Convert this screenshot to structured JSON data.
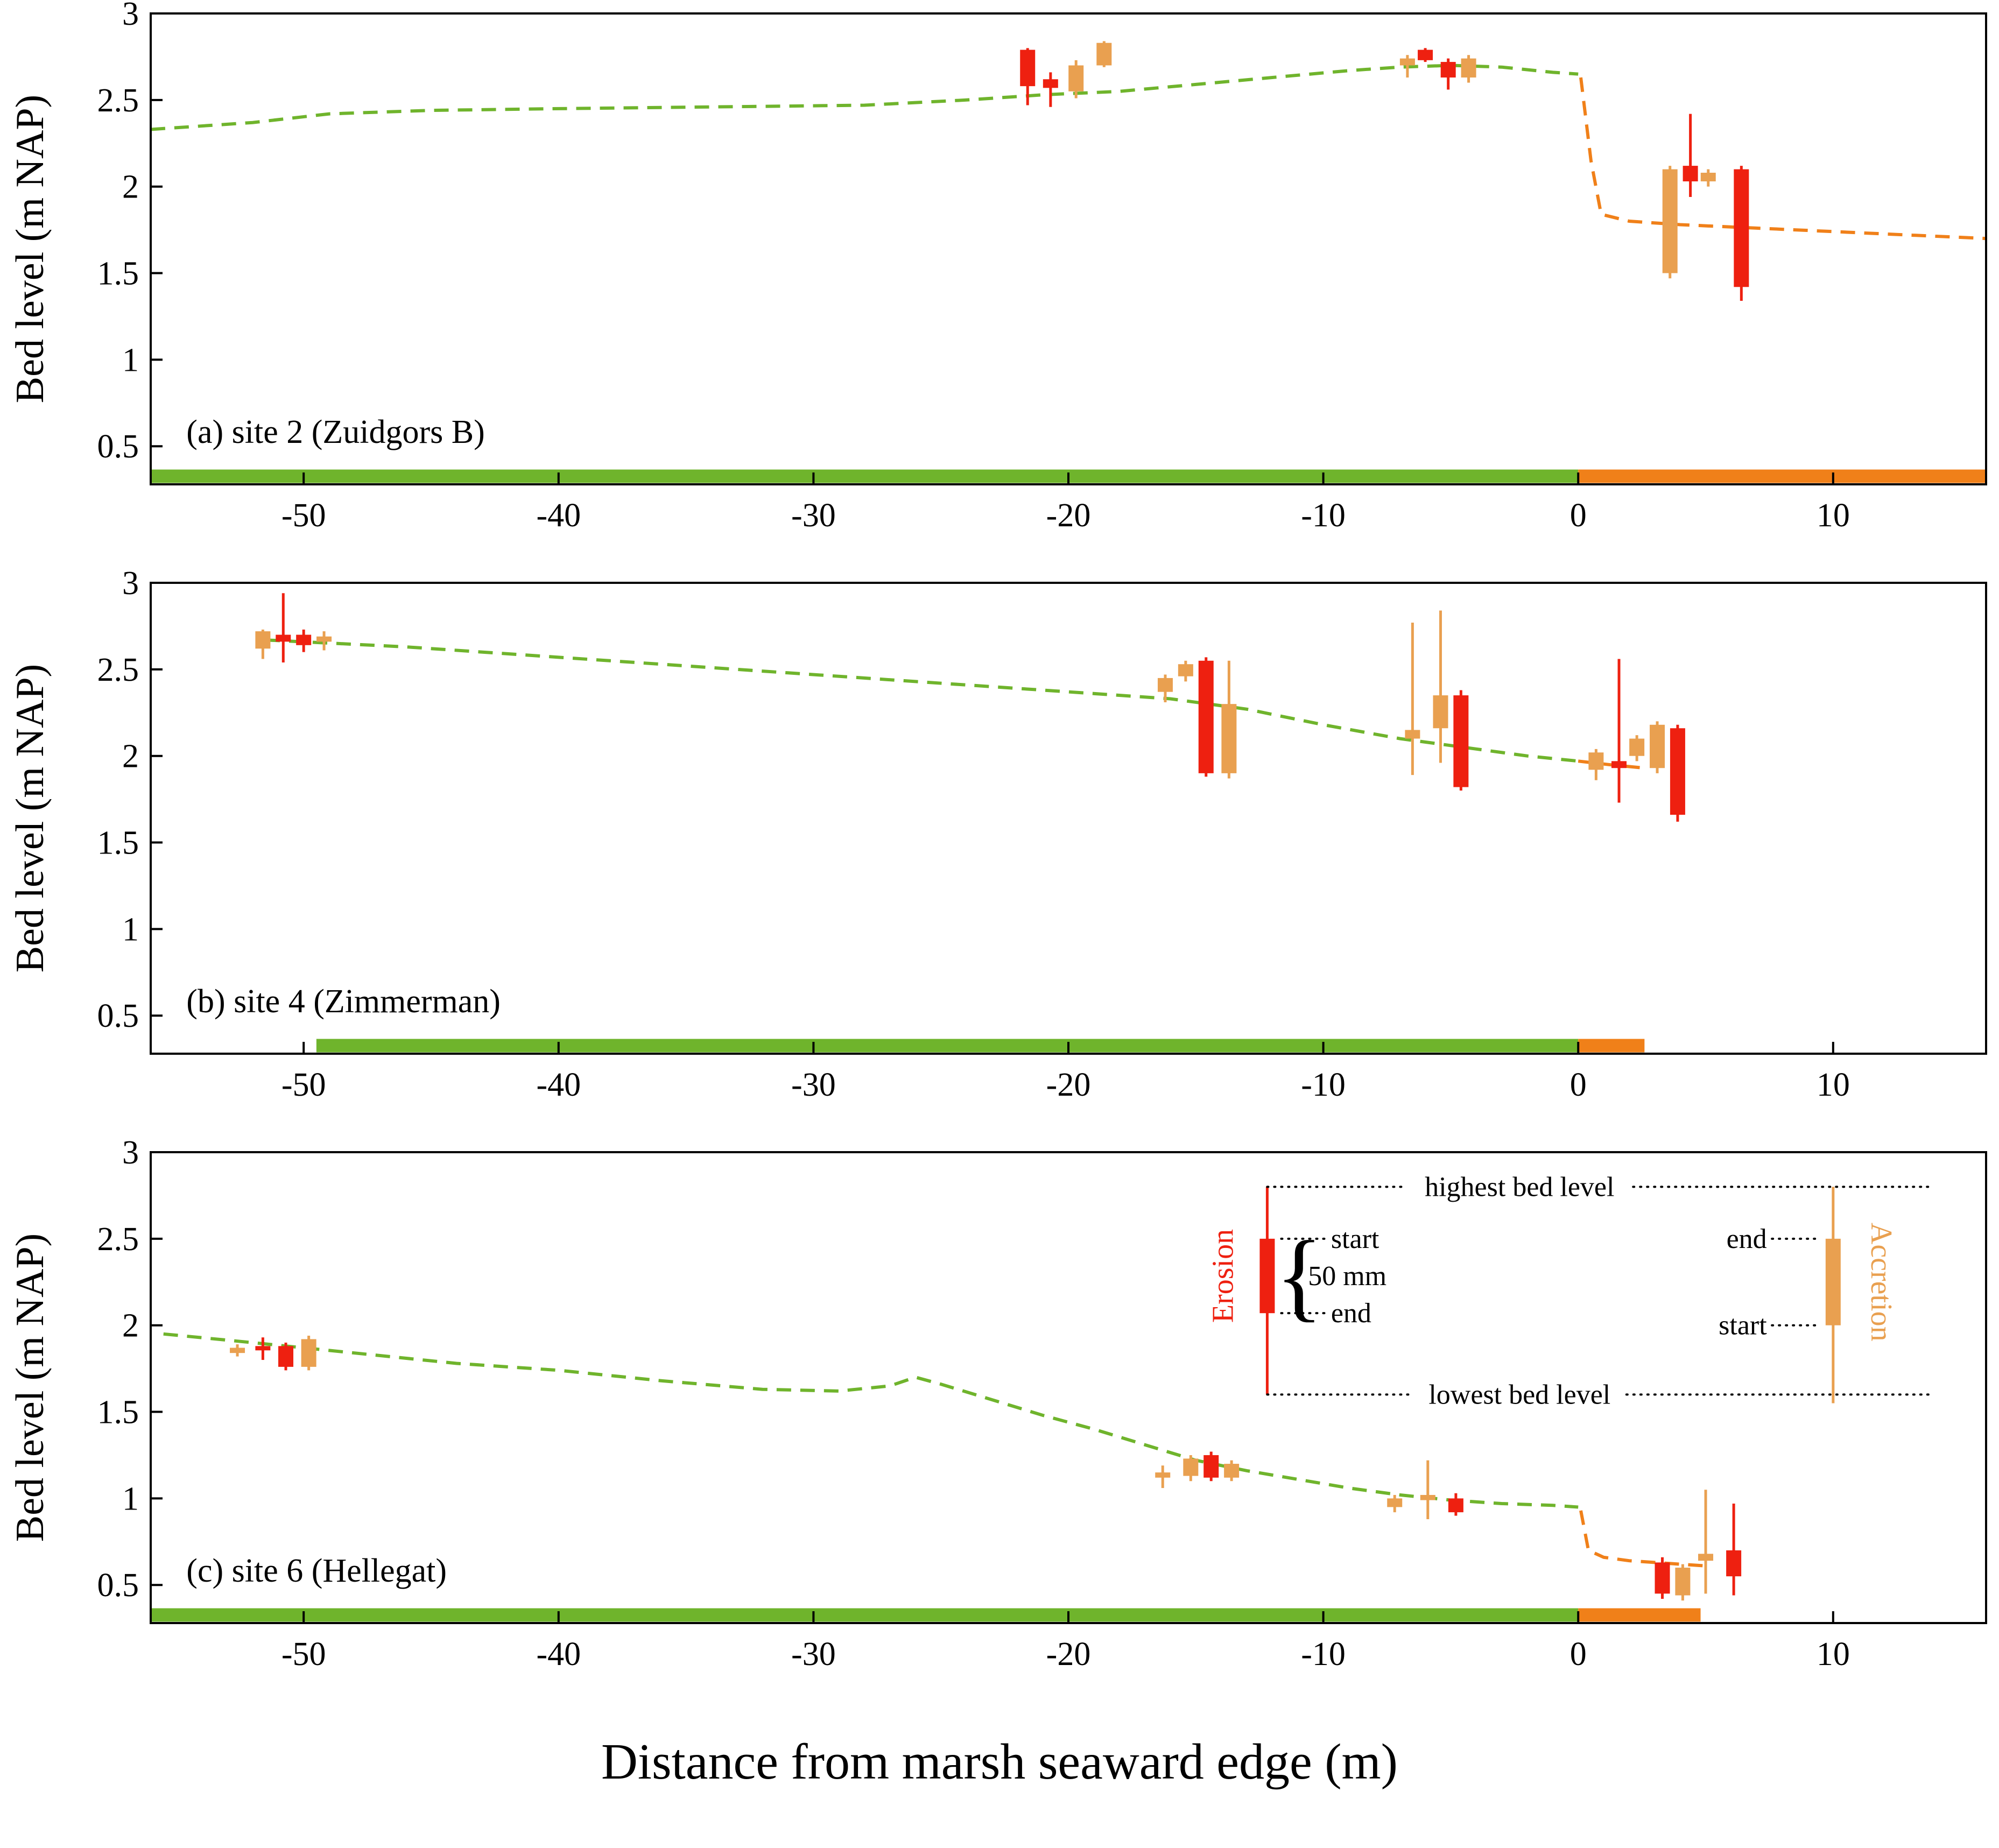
{
  "figure": {
    "x_axis_title": "Distance from marsh seaward edge  (m)",
    "y_axis_title": "Bed level  (m NAP)",
    "x_ticks": [
      -50,
      -40,
      -30,
      -20,
      -10,
      0,
      10
    ],
    "y_ticks": [
      0.5,
      1,
      1.5,
      2,
      2.5,
      3
    ],
    "x_range": [
      -56,
      16
    ],
    "y_range": [
      0.28,
      3
    ],
    "colors": {
      "erosion": "#ee2010",
      "accretion": "#e9a050",
      "marsh_line": "#6fb42c",
      "flat_line": "#f08019",
      "axis": "#000000"
    }
  },
  "chart_data": [
    {
      "type": "line",
      "label": "(a) site 2 (Zuidgors B)",
      "xlabel": "Distance from marsh seaward edge  (m)",
      "ylabel": "Bed level  (m NAP)",
      "xlim": [
        -56,
        16
      ],
      "ylim": [
        0.28,
        3
      ],
      "marsh_profile": [
        [
          -56,
          2.33
        ],
        [
          -52,
          2.37
        ],
        [
          -49,
          2.42
        ],
        [
          -45,
          2.44
        ],
        [
          -40,
          2.45
        ],
        [
          -34,
          2.46
        ],
        [
          -28,
          2.47
        ],
        [
          -24,
          2.5
        ],
        [
          -21,
          2.53
        ],
        [
          -18,
          2.55
        ],
        [
          -15,
          2.59
        ],
        [
          -12,
          2.63
        ],
        [
          -9,
          2.67
        ],
        [
          -7,
          2.69
        ],
        [
          -5,
          2.7
        ],
        [
          -3,
          2.69
        ],
        [
          -1,
          2.66
        ],
        [
          0,
          2.65
        ]
      ],
      "flat_profile": [
        [
          0.1,
          2.63
        ],
        [
          0.5,
          2.15
        ],
        [
          0.9,
          1.84
        ],
        [
          2,
          1.8
        ],
        [
          4,
          1.78
        ],
        [
          7,
          1.76
        ],
        [
          10,
          1.74
        ],
        [
          13,
          1.72
        ],
        [
          16,
          1.7
        ]
      ],
      "candles": [
        {
          "x": -21.6,
          "kind": "erosion",
          "box": [
            2.58,
            2.79
          ],
          "whisker": [
            2.47,
            2.8
          ]
        },
        {
          "x": -20.7,
          "kind": "erosion",
          "box": [
            2.57,
            2.62
          ],
          "whisker": [
            2.46,
            2.66
          ]
        },
        {
          "x": -19.7,
          "kind": "accretion",
          "box": [
            2.55,
            2.7
          ],
          "whisker": [
            2.51,
            2.73
          ]
        },
        {
          "x": -18.6,
          "kind": "accretion",
          "box": [
            2.7,
            2.83
          ],
          "whisker": [
            2.69,
            2.84
          ]
        },
        {
          "x": -6.7,
          "kind": "accretion",
          "box": [
            2.7,
            2.74
          ],
          "whisker": [
            2.63,
            2.76
          ]
        },
        {
          "x": -6.0,
          "kind": "erosion",
          "box": [
            2.73,
            2.79
          ],
          "whisker": [
            2.72,
            2.8
          ]
        },
        {
          "x": -5.1,
          "kind": "erosion",
          "box": [
            2.63,
            2.72
          ],
          "whisker": [
            2.56,
            2.74
          ]
        },
        {
          "x": -4.3,
          "kind": "accretion",
          "box": [
            2.63,
            2.74
          ],
          "whisker": [
            2.6,
            2.76
          ]
        },
        {
          "x": 3.6,
          "kind": "accretion",
          "box": [
            1.5,
            2.1
          ],
          "whisker": [
            1.47,
            2.12
          ]
        },
        {
          "x": 4.4,
          "kind": "erosion",
          "box": [
            2.03,
            2.12
          ],
          "whisker": [
            1.94,
            2.42
          ]
        },
        {
          "x": 5.1,
          "kind": "accretion",
          "box": [
            2.03,
            2.08
          ],
          "whisker": [
            2.0,
            2.1
          ]
        },
        {
          "x": 6.4,
          "kind": "erosion",
          "box": [
            1.42,
            2.1
          ],
          "whisker": [
            1.34,
            2.12
          ]
        }
      ],
      "marsh_bar": [
        -56,
        0
      ],
      "flat_bar": [
        0,
        16
      ]
    },
    {
      "type": "line",
      "label": "(b) site 4 (Zimmerman)",
      "xlabel": "Distance from marsh seaward edge  (m)",
      "ylabel": "Bed level  (m NAP)",
      "xlim": [
        -56,
        16
      ],
      "ylim": [
        0.28,
        3
      ],
      "marsh_profile": [
        [
          -51.5,
          2.67
        ],
        [
          -46,
          2.63
        ],
        [
          -41,
          2.58
        ],
        [
          -36,
          2.53
        ],
        [
          -31,
          2.48
        ],
        [
          -26,
          2.43
        ],
        [
          -21,
          2.38
        ],
        [
          -16,
          2.33
        ],
        [
          -13,
          2.27
        ],
        [
          -10,
          2.18
        ],
        [
          -7,
          2.1
        ],
        [
          -4,
          2.04
        ],
        [
          -2,
          2.0
        ],
        [
          0,
          1.97
        ]
      ],
      "flat_profile": [
        [
          0,
          1.97
        ],
        [
          1.2,
          1.95
        ],
        [
          2.6,
          1.93
        ]
      ],
      "candles": [
        {
          "x": -51.6,
          "kind": "accretion",
          "box": [
            2.62,
            2.72
          ],
          "whisker": [
            2.56,
            2.73
          ]
        },
        {
          "x": -50.8,
          "kind": "erosion",
          "box": [
            2.66,
            2.7
          ],
          "whisker": [
            2.54,
            2.94
          ]
        },
        {
          "x": -50.0,
          "kind": "erosion",
          "box": [
            2.64,
            2.7
          ],
          "whisker": [
            2.6,
            2.73
          ]
        },
        {
          "x": -49.2,
          "kind": "accretion",
          "box": [
            2.66,
            2.69
          ],
          "whisker": [
            2.61,
            2.72
          ]
        },
        {
          "x": -16.2,
          "kind": "accretion",
          "box": [
            2.37,
            2.45
          ],
          "whisker": [
            2.31,
            2.47
          ]
        },
        {
          "x": -15.4,
          "kind": "accretion",
          "box": [
            2.46,
            2.53
          ],
          "whisker": [
            2.43,
            2.55
          ]
        },
        {
          "x": -14.6,
          "kind": "erosion",
          "box": [
            1.9,
            2.55
          ],
          "whisker": [
            1.88,
            2.57
          ]
        },
        {
          "x": -13.7,
          "kind": "accretion",
          "box": [
            1.9,
            2.3
          ],
          "whisker": [
            1.87,
            2.55
          ]
        },
        {
          "x": -6.5,
          "kind": "accretion",
          "box": [
            2.1,
            2.15
          ],
          "whisker": [
            1.89,
            2.77
          ]
        },
        {
          "x": -5.4,
          "kind": "accretion",
          "box": [
            2.16,
            2.35
          ],
          "whisker": [
            1.96,
            2.84
          ]
        },
        {
          "x": -4.6,
          "kind": "erosion",
          "box": [
            1.82,
            2.35
          ],
          "whisker": [
            1.8,
            2.38
          ]
        },
        {
          "x": 0.7,
          "kind": "accretion",
          "box": [
            1.92,
            2.02
          ],
          "whisker": [
            1.86,
            2.04
          ]
        },
        {
          "x": 1.6,
          "kind": "erosion",
          "box": [
            1.93,
            1.97
          ],
          "whisker": [
            1.73,
            2.56
          ]
        },
        {
          "x": 2.3,
          "kind": "accretion",
          "box": [
            2.0,
            2.1
          ],
          "whisker": [
            1.97,
            2.12
          ]
        },
        {
          "x": 3.1,
          "kind": "accretion",
          "box": [
            1.93,
            2.18
          ],
          "whisker": [
            1.9,
            2.2
          ]
        },
        {
          "x": 3.9,
          "kind": "erosion",
          "box": [
            1.66,
            2.16
          ],
          "whisker": [
            1.62,
            2.18
          ]
        }
      ],
      "marsh_bar": [
        -49.5,
        0
      ],
      "flat_bar": [
        0,
        2.6
      ]
    },
    {
      "type": "line",
      "label": "(c) site 6 (Hellegat)",
      "xlabel": "Distance from marsh seaward edge  (m)",
      "ylabel": "Bed level  (m NAP)",
      "xlim": [
        -56,
        16
      ],
      "ylim": [
        0.28,
        3
      ],
      "marsh_profile": [
        [
          -55.5,
          1.95
        ],
        [
          -52,
          1.9
        ],
        [
          -48,
          1.84
        ],
        [
          -44,
          1.78
        ],
        [
          -40,
          1.74
        ],
        [
          -36,
          1.68
        ],
        [
          -32,
          1.63
        ],
        [
          -29,
          1.62
        ],
        [
          -27,
          1.65
        ],
        [
          -26,
          1.7
        ],
        [
          -25,
          1.66
        ],
        [
          -23,
          1.57
        ],
        [
          -21,
          1.48
        ],
        [
          -19,
          1.4
        ],
        [
          -17,
          1.31
        ],
        [
          -15,
          1.22
        ],
        [
          -13,
          1.16
        ],
        [
          -11,
          1.11
        ],
        [
          -9,
          1.06
        ],
        [
          -7,
          1.02
        ],
        [
          -5,
          0.99
        ],
        [
          -3,
          0.97
        ],
        [
          -1,
          0.96
        ],
        [
          0,
          0.95
        ]
      ],
      "flat_profile": [
        [
          0.1,
          0.93
        ],
        [
          0.4,
          0.7
        ],
        [
          1,
          0.66
        ],
        [
          2,
          0.64
        ],
        [
          3,
          0.63
        ],
        [
          4,
          0.62
        ],
        [
          5,
          0.61
        ]
      ],
      "candles": [
        {
          "x": -52.6,
          "kind": "accretion",
          "box": [
            1.84,
            1.87
          ],
          "whisker": [
            1.82,
            1.89
          ]
        },
        {
          "x": -51.6,
          "kind": "erosion",
          "box": [
            1.86,
            1.88
          ],
          "whisker": [
            1.8,
            1.93
          ]
        },
        {
          "x": -50.7,
          "kind": "erosion",
          "box": [
            1.76,
            1.88
          ],
          "whisker": [
            1.74,
            1.9
          ]
        },
        {
          "x": -49.8,
          "kind": "accretion",
          "box": [
            1.76,
            1.92
          ],
          "whisker": [
            1.74,
            1.94
          ]
        },
        {
          "x": -16.3,
          "kind": "accretion",
          "box": [
            1.12,
            1.15
          ],
          "whisker": [
            1.06,
            1.19
          ]
        },
        {
          "x": -15.2,
          "kind": "accretion",
          "box": [
            1.13,
            1.23
          ],
          "whisker": [
            1.1,
            1.25
          ]
        },
        {
          "x": -14.4,
          "kind": "erosion",
          "box": [
            1.12,
            1.25
          ],
          "whisker": [
            1.1,
            1.27
          ]
        },
        {
          "x": -13.6,
          "kind": "accretion",
          "box": [
            1.12,
            1.2
          ],
          "whisker": [
            1.1,
            1.22
          ]
        },
        {
          "x": -7.2,
          "kind": "accretion",
          "box": [
            0.95,
            1.0
          ],
          "whisker": [
            0.92,
            1.02
          ]
        },
        {
          "x": -5.9,
          "kind": "accretion",
          "box": [
            0.99,
            1.02
          ],
          "whisker": [
            0.88,
            1.22
          ]
        },
        {
          "x": -4.8,
          "kind": "erosion",
          "box": [
            0.92,
            1.0
          ],
          "whisker": [
            0.9,
            1.03
          ]
        },
        {
          "x": 3.3,
          "kind": "erosion",
          "box": [
            0.45,
            0.63
          ],
          "whisker": [
            0.42,
            0.66
          ]
        },
        {
          "x": 4.1,
          "kind": "accretion",
          "box": [
            0.44,
            0.6
          ],
          "whisker": [
            0.41,
            0.62
          ]
        },
        {
          "x": 5.0,
          "kind": "accretion",
          "box": [
            0.64,
            0.68
          ],
          "whisker": [
            0.45,
            1.05
          ]
        },
        {
          "x": 6.1,
          "kind": "erosion",
          "box": [
            0.55,
            0.7
          ],
          "whisker": [
            0.44,
            0.97
          ]
        }
      ],
      "marsh_bar": [
        -56,
        0
      ],
      "flat_bar": [
        0,
        4.8
      ],
      "legend": {
        "red_candle": {
          "x": -12.2,
          "box": [
            2.07,
            2.5
          ],
          "whisker": [
            1.6,
            2.8
          ]
        },
        "orange_candle": {
          "x": 10.0,
          "box": [
            2.0,
            2.5
          ],
          "whisker": [
            1.55,
            2.8
          ]
        },
        "labels": {
          "erosion": "Erosion",
          "accretion": "Accretion",
          "highest": "highest bed level",
          "lowest": "lowest bed level",
          "start": "start",
          "end": "end",
          "scale": "50 mm"
        },
        "highest_y": 2.8,
        "lowest_y": 1.6,
        "right_extent": 13.8
      }
    }
  ]
}
